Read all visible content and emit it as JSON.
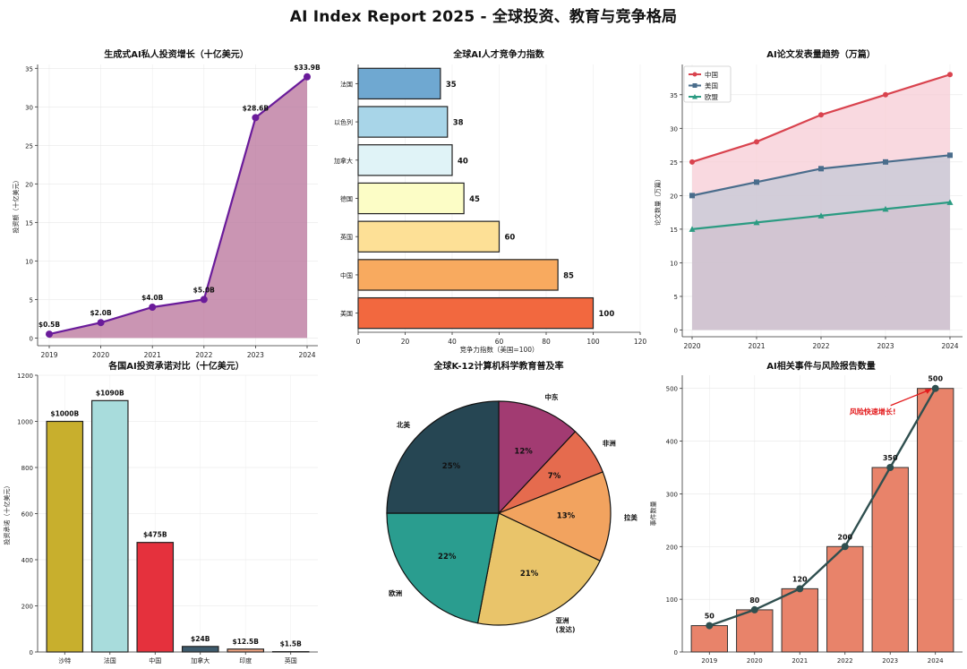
{
  "title": "AI Index Report 2025 - 全球投资、教育与竞争格局",
  "chart_data": [
    {
      "type": "area",
      "title": "生成式AI私人投资增长（十亿美元）",
      "xlabel": "",
      "ylabel": "投资额（十亿美元）",
      "x": [
        "2019",
        "2020",
        "2021",
        "2022",
        "2023",
        "2024"
      ],
      "values": [
        0.5,
        2.0,
        4.0,
        5.0,
        28.6,
        33.9
      ],
      "data_labels": [
        "$0.5B",
        "$2.0B",
        "$4.0B",
        "$5.0B",
        "$28.6B",
        "$33.9B"
      ],
      "ylim": [
        -1,
        35.5
      ],
      "yticks": [
        0,
        5,
        10,
        15,
        20,
        25,
        30,
        35
      ],
      "line_color": "#6a1b9a",
      "fill_color": "#b8729a",
      "grid": true
    },
    {
      "type": "bar",
      "orientation": "horizontal",
      "title": "全球AI人才竞争力指数",
      "xlabel": "竞争力指数（美国=100）",
      "ylabel": "",
      "categories": [
        "法国",
        "以色列",
        "加拿大",
        "德国",
        "英国",
        "中国",
        "美国"
      ],
      "values": [
        35,
        38,
        40,
        45,
        60,
        85,
        100
      ],
      "colors": [
        "#6fa8d1",
        "#a8d5e8",
        "#e0f3f7",
        "#fcfdc6",
        "#fde096",
        "#f8aa5f",
        "#f2683f"
      ],
      "xlim": [
        0,
        120
      ],
      "xticks": [
        0,
        20,
        40,
        60,
        80,
        100,
        120
      ],
      "grid": true
    },
    {
      "type": "line",
      "title": "AI论文发表量趋势（万篇）",
      "xlabel": "",
      "ylabel": "论文数量（万篇）",
      "x": [
        "2020",
        "2021",
        "2022",
        "2023",
        "2024"
      ],
      "series": [
        {
          "name": "中国",
          "values": [
            25,
            28,
            32,
            35,
            38
          ],
          "color": "#d9434e",
          "fill": "#f7c9d3",
          "marker": "circle"
        },
        {
          "name": "美国",
          "values": [
            20,
            22,
            24,
            25,
            26
          ],
          "color": "#4a6d8c",
          "fill": "#c2c8d6",
          "marker": "square"
        },
        {
          "name": "欧盟",
          "values": [
            15,
            16,
            17,
            18,
            19
          ],
          "color": "#2b9b82",
          "fill": "#d2c2cf",
          "marker": "triangle"
        }
      ],
      "ylim": [
        -1,
        39.5
      ],
      "yticks": [
        0,
        5,
        10,
        15,
        20,
        25,
        30,
        35
      ],
      "legend": "top-left",
      "grid": true
    },
    {
      "type": "bar",
      "title": "各国AI投资承诺对比（十亿美元）",
      "xlabel": "",
      "ylabel": "投资承诺（十亿美元）",
      "categories": [
        "沙特",
        "法国",
        "中国",
        "加拿大",
        "印度",
        "英国"
      ],
      "values": [
        1000,
        1090,
        475,
        24,
        12.5,
        1.5
      ],
      "data_labels": [
        "$1000B",
        "$1090B",
        "$475B",
        "$24B",
        "$12.5B",
        "$1.5B"
      ],
      "colors": [
        "#c8af2d",
        "#a8dcdc",
        "#e5313d",
        "#3d5a6c",
        "#f4a582",
        "#e3a88a"
      ],
      "ylim": [
        0,
        1200
      ],
      "yticks": [
        0,
        200,
        400,
        600,
        800,
        1000,
        1200
      ],
      "grid": true
    },
    {
      "type": "pie",
      "title": "全球K-12计算机科学教育普及率",
      "slices": [
        {
          "label": "中东",
          "value": 12,
          "pct_label": "12%",
          "color": "#a23b72"
        },
        {
          "label": "非洲",
          "value": 7,
          "pct_label": "7%",
          "color": "#e56b4e"
        },
        {
          "label": "拉美",
          "value": 13,
          "pct_label": "13%",
          "color": "#f2a35f"
        },
        {
          "label": "亚洲\n(发达)",
          "value": 21,
          "pct_label": "21%",
          "color": "#e9c46a"
        },
        {
          "label": "欧洲",
          "value": 22,
          "pct_label": "22%",
          "color": "#2a9d8f"
        },
        {
          "label": "北美",
          "value": 25,
          "pct_label": "25%",
          "color": "#264653"
        }
      ]
    },
    {
      "type": "bar",
      "title": "AI相关事件与风险报告数量",
      "xlabel": "",
      "ylabel": "事件数量",
      "categories": [
        "2019",
        "2020",
        "2021",
        "2022",
        "2023",
        "2024"
      ],
      "values": [
        50,
        80,
        120,
        200,
        350,
        500
      ],
      "data_labels": [
        "50",
        "80",
        "120",
        "200",
        "350",
        "500"
      ],
      "bar_color": "#e8836a",
      "line_color": "#2f4f4f",
      "ylim": [
        0,
        525
      ],
      "yticks": [
        0,
        100,
        200,
        300,
        400,
        500
      ],
      "annotation": "风险快速增长!",
      "annotation_color": "#e31a1c",
      "grid": true
    }
  ]
}
